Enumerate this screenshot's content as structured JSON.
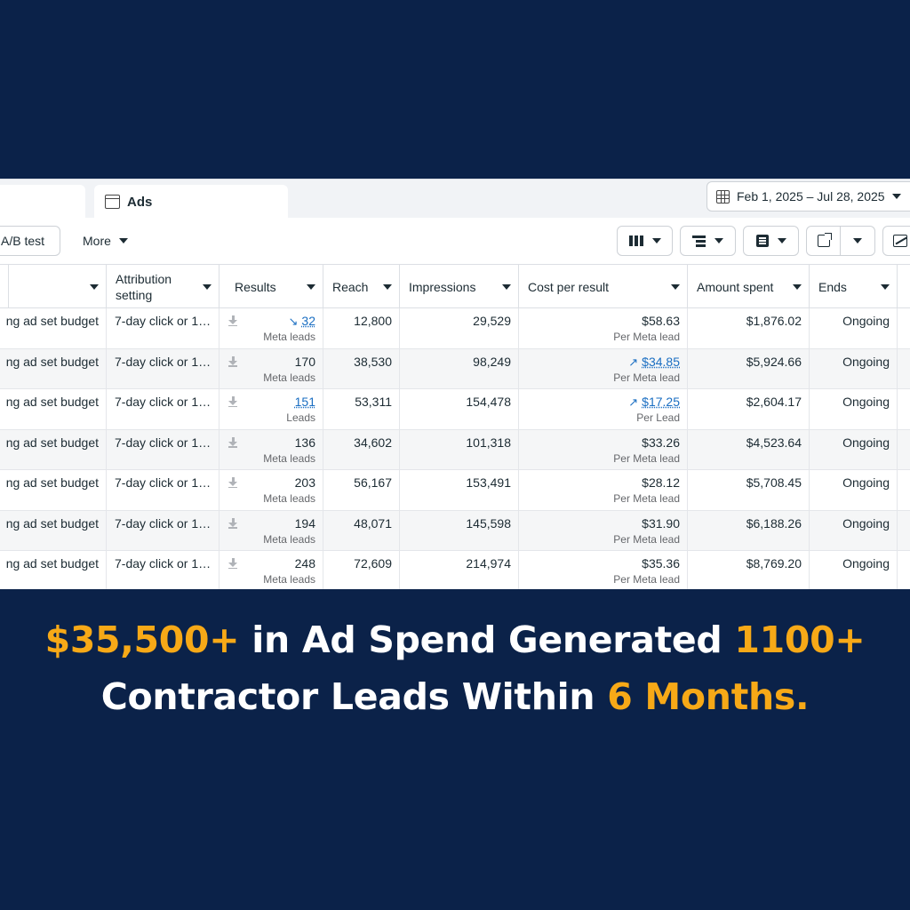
{
  "tabs": {
    "ads_label": "Ads"
  },
  "date_range": {
    "label": "Feb 1, 2025 – Jul 28, 2025"
  },
  "toolbar": {
    "ab_test_label": "A/B test",
    "more_label": "More"
  },
  "table": {
    "headers": [
      "",
      "Attribution setting",
      "Results",
      "Reach",
      "Impressions",
      "Cost per result",
      "Amount spent",
      "Ends"
    ],
    "rows": [
      {
        "budget": "ng ad set budget",
        "attribution": "7-day click or 1…",
        "results": "32",
        "results_type": "Meta leads",
        "reach": "12,800",
        "impressions": "29,529",
        "cost": "$58.63",
        "cost_type": "Per Meta lead",
        "spent": "$1,876.02",
        "ends": "Ongoing"
      },
      {
        "budget": "ng ad set budget",
        "attribution": "7-day click or 1…",
        "results": "170",
        "results_type": "Meta leads",
        "reach": "38,530",
        "impressions": "98,249",
        "cost": "$34.85",
        "cost_type": "Per Meta lead",
        "spent": "$5,924.66",
        "ends": "Ongoing"
      },
      {
        "budget": "ng ad set budget",
        "attribution": "7-day click or 1…",
        "results": "151",
        "results_type": "Leads",
        "reach": "53,311",
        "impressions": "154,478",
        "cost": "$17.25",
        "cost_type": "Per Lead",
        "spent": "$2,604.17",
        "ends": "Ongoing"
      },
      {
        "budget": "ng ad set budget",
        "attribution": "7-day click or 1…",
        "results": "136",
        "results_type": "Meta leads",
        "reach": "34,602",
        "impressions": "101,318",
        "cost": "$33.26",
        "cost_type": "Per Meta lead",
        "spent": "$4,523.64",
        "ends": "Ongoing"
      },
      {
        "budget": "ng ad set budget",
        "attribution": "7-day click or 1…",
        "results": "203",
        "results_type": "Meta leads",
        "reach": "56,167",
        "impressions": "153,491",
        "cost": "$28.12",
        "cost_type": "Per Meta lead",
        "spent": "$5,708.45",
        "ends": "Ongoing"
      },
      {
        "budget": "ng ad set budget",
        "attribution": "7-day click or 1…",
        "results": "194",
        "results_type": "Meta leads",
        "reach": "48,071",
        "impressions": "145,598",
        "cost": "$31.90",
        "cost_type": "Per Meta lead",
        "spent": "$6,188.26",
        "ends": "Ongoing"
      },
      {
        "budget": "ng ad set budget",
        "attribution": "7-day click or 1…",
        "results": "248",
        "results_type": "Meta leads",
        "reach": "72,609",
        "impressions": "214,974",
        "cost": "$35.36",
        "cost_type": "Per Meta lead",
        "spent": "$8,769.20",
        "ends": "Ongoing"
      }
    ]
  },
  "caption": {
    "part1": "$35,500+",
    "part2": " in Ad Spend Generated ",
    "part3": "1100+",
    "part4": "Contractor Leads Within ",
    "part5": "6 Months."
  },
  "colors": {
    "background": "#0b2249",
    "highlight": "#f7a917",
    "link": "#1a6ec2"
  }
}
